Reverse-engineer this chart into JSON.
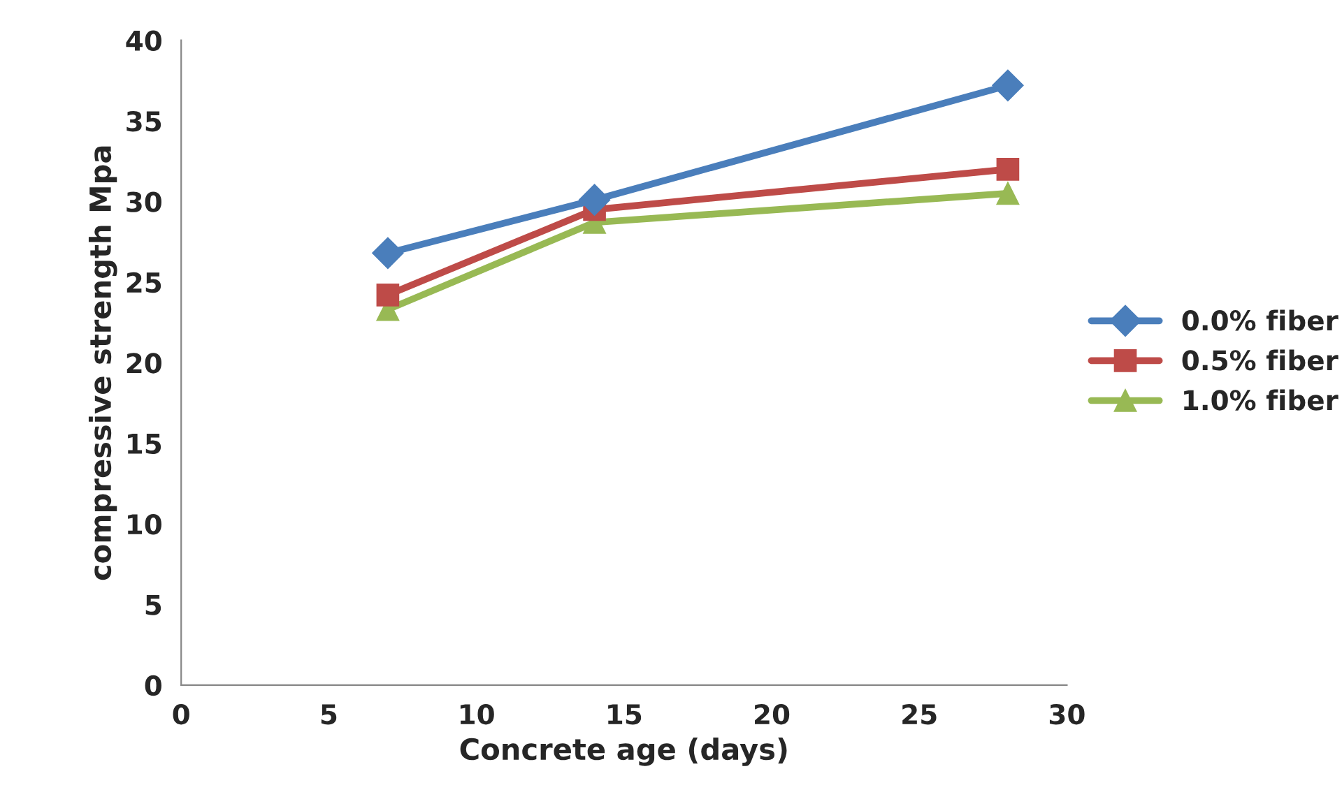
{
  "chart_data": {
    "type": "line",
    "xlabel": "Concrete age (days)",
    "ylabel": "compressive strength Mpa",
    "x": [
      7,
      14,
      28
    ],
    "series": [
      {
        "name": "0.0% fiber",
        "color": "#4a7ebb",
        "marker": "diamond",
        "values": [
          26.8,
          30.1,
          37.2
        ]
      },
      {
        "name": "0.5% fiber",
        "color": "#be4b48",
        "marker": "square",
        "values": [
          24.2,
          29.5,
          32.0
        ]
      },
      {
        "name": "1.0% fiber",
        "color": "#98b954",
        "marker": "triangle",
        "values": [
          23.3,
          28.7,
          30.5
        ]
      }
    ],
    "xlim": [
      0,
      30
    ],
    "xticks": [
      0,
      5,
      10,
      15,
      20,
      25,
      30
    ],
    "ylim": [
      0,
      40
    ],
    "yticks": [
      0,
      5,
      10,
      15,
      20,
      25,
      30,
      35,
      40
    ],
    "grid": false,
    "legend": "right",
    "line_style": "solid"
  }
}
